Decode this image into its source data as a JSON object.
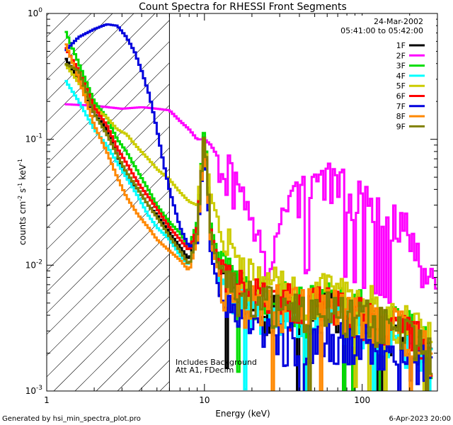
{
  "chart_data": {
    "type": "line",
    "title": "Count Spectra for RHESSI Front Segments",
    "xlabel": "Energy (keV)",
    "ylabel": "counts cm",
    "ylabel_exp1": "-2",
    "ylabel_mid": " s",
    "ylabel_exp2": "-1",
    "ylabel_tail": " keV",
    "ylabel_exp3": "-1",
    "x_scale": "log",
    "y_scale": "log",
    "xlim": [
      1,
      300
    ],
    "ylim": [
      0.001,
      1
    ],
    "x_ticks": [
      {
        "value": 1,
        "label": "1"
      },
      {
        "value": 10,
        "label": "10"
      },
      {
        "value": 100,
        "label": "100"
      }
    ],
    "y_ticks": [
      {
        "value": 1,
        "mant": "10",
        "exp": "0"
      },
      {
        "value": 0.1,
        "mant": "10",
        "exp": "-1"
      },
      {
        "value": 0.01,
        "mant": "10",
        "exp": "-2"
      },
      {
        "value": 0.001,
        "mant": "10",
        "exp": "-3"
      }
    ],
    "date_label": "24-Mar-2002",
    "time_label": "05:41:00 to 05:42:00",
    "threshold_energy": 6,
    "notes": [
      "Includes Background",
      "Att A1, FDecim"
    ],
    "series": [
      {
        "name": "1F",
        "color": "#000000",
        "points": [
          [
            1.3,
            0.45
          ],
          [
            1.6,
            0.3
          ],
          [
            2.0,
            0.16
          ],
          [
            2.4,
            0.12
          ],
          [
            2.8,
            0.075
          ],
          [
            3.2,
            0.05
          ],
          [
            3.8,
            0.04
          ],
          [
            4.4,
            0.03
          ],
          [
            5.0,
            0.025
          ],
          [
            6.0,
            0.018
          ],
          [
            7.0,
            0.014
          ],
          [
            8.0,
            0.011
          ],
          [
            9.0,
            0.02
          ],
          [
            10.0,
            0.12
          ],
          [
            11.0,
            0.018
          ],
          [
            13,
            0.008
          ],
          [
            16,
            0.006
          ],
          [
            20,
            0.005
          ],
          [
            25,
            0.0045
          ],
          [
            30,
            0.0045
          ],
          [
            40,
            0.004
          ],
          [
            50,
            0.0045
          ],
          [
            60,
            0.0045
          ],
          [
            80,
            0.004
          ],
          [
            100,
            0.004
          ],
          [
            130,
            0.0035
          ],
          [
            160,
            0.003
          ],
          [
            200,
            0.0025
          ],
          [
            250,
            0.0022
          ],
          [
            280,
            0.0018
          ]
        ]
      },
      {
        "name": "2F",
        "color": "#ff00ff",
        "points": [
          [
            1.3,
            0.19
          ],
          [
            2.0,
            0.185
          ],
          [
            3.0,
            0.175
          ],
          [
            4.0,
            0.18
          ],
          [
            5.0,
            0.175
          ],
          [
            6.0,
            0.17
          ],
          [
            7.0,
            0.14
          ],
          [
            8.0,
            0.12
          ],
          [
            9.0,
            0.1
          ],
          [
            10.0,
            0.1
          ],
          [
            11.0,
            0.09
          ],
          [
            12.0,
            0.075
          ],
          [
            14.0,
            0.055
          ],
          [
            16.0,
            0.04
          ],
          [
            18.0,
            0.028
          ],
          [
            20.0,
            0.02
          ],
          [
            22.0,
            0.014
          ],
          [
            24.0,
            0.011
          ],
          [
            27.0,
            0.013
          ],
          [
            30.0,
            0.02
          ],
          [
            35.0,
            0.032
          ],
          [
            40.0,
            0.04
          ],
          [
            50.0,
            0.047
          ],
          [
            60.0,
            0.045
          ],
          [
            70.0,
            0.042
          ],
          [
            80.0,
            0.039
          ],
          [
            100.0,
            0.033
          ],
          [
            120.0,
            0.03
          ],
          [
            140.0,
            0.027
          ],
          [
            160.0,
            0.022
          ],
          [
            190.0,
            0.018
          ],
          [
            220.0,
            0.013
          ],
          [
            250.0,
            0.01
          ],
          [
            280.0,
            0.009
          ],
          [
            300.0,
            0.0085
          ]
        ]
      },
      {
        "name": "3F",
        "color": "#00dd00",
        "points": [
          [
            1.3,
            0.75
          ],
          [
            1.6,
            0.4
          ],
          [
            2.0,
            0.2
          ],
          [
            2.4,
            0.15
          ],
          [
            2.8,
            0.1
          ],
          [
            3.2,
            0.08
          ],
          [
            3.8,
            0.055
          ],
          [
            4.4,
            0.04
          ],
          [
            5.0,
            0.03
          ],
          [
            6.0,
            0.022
          ],
          [
            7.0,
            0.018
          ],
          [
            8.0,
            0.014
          ],
          [
            9.0,
            0.022
          ],
          [
            10.0,
            0.13
          ],
          [
            11.0,
            0.02
          ],
          [
            13,
            0.009
          ],
          [
            16,
            0.007
          ],
          [
            20,
            0.006
          ],
          [
            25,
            0.0055
          ],
          [
            30,
            0.0055
          ],
          [
            40,
            0.005
          ],
          [
            50,
            0.005
          ],
          [
            60,
            0.005
          ],
          [
            80,
            0.0045
          ],
          [
            100,
            0.0045
          ],
          [
            130,
            0.004
          ],
          [
            160,
            0.0035
          ],
          [
            200,
            0.003
          ],
          [
            250,
            0.0025
          ],
          [
            280,
            0.002
          ]
        ]
      },
      {
        "name": "4F",
        "color": "#00ffff",
        "points": [
          [
            1.3,
            0.3
          ],
          [
            1.6,
            0.2
          ],
          [
            2.0,
            0.12
          ],
          [
            2.4,
            0.09
          ],
          [
            2.8,
            0.065
          ],
          [
            3.2,
            0.05
          ],
          [
            3.8,
            0.035
          ],
          [
            4.4,
            0.025
          ],
          [
            5.0,
            0.02
          ],
          [
            6.0,
            0.016
          ],
          [
            7.0,
            0.012
          ],
          [
            8.0,
            0.01
          ],
          [
            9.0,
            0.018
          ],
          [
            10.0,
            0.09
          ],
          [
            11.0,
            0.016
          ],
          [
            13,
            0.007
          ],
          [
            16,
            0.0055
          ],
          [
            20,
            0.0048
          ],
          [
            25,
            0.0045
          ],
          [
            30,
            0.0045
          ],
          [
            40,
            0.004
          ],
          [
            50,
            0.004
          ],
          [
            60,
            0.004
          ],
          [
            80,
            0.0038
          ],
          [
            100,
            0.0036
          ],
          [
            130,
            0.0032
          ],
          [
            160,
            0.0028
          ],
          [
            200,
            0.0024
          ],
          [
            250,
            0.002
          ],
          [
            280,
            0.0017
          ]
        ]
      },
      {
        "name": "5F",
        "color": "#cccc00",
        "points": [
          [
            1.3,
            0.4
          ],
          [
            1.6,
            0.28
          ],
          [
            2.0,
            0.18
          ],
          [
            2.4,
            0.15
          ],
          [
            2.8,
            0.12
          ],
          [
            3.2,
            0.11
          ],
          [
            3.8,
            0.085
          ],
          [
            4.4,
            0.07
          ],
          [
            5.0,
            0.058
          ],
          [
            6.0,
            0.048
          ],
          [
            7.0,
            0.038
          ],
          [
            8.0,
            0.032
          ],
          [
            9.0,
            0.03
          ],
          [
            10.0,
            0.1
          ],
          [
            11.0,
            0.035
          ],
          [
            12.0,
            0.025
          ],
          [
            13,
            0.02
          ],
          [
            14,
            0.015
          ],
          [
            16,
            0.01
          ],
          [
            20,
            0.008
          ],
          [
            25,
            0.007
          ],
          [
            30,
            0.0065
          ],
          [
            40,
            0.006
          ],
          [
            50,
            0.006
          ],
          [
            60,
            0.0058
          ],
          [
            80,
            0.0055
          ],
          [
            100,
            0.005
          ],
          [
            130,
            0.0045
          ],
          [
            160,
            0.004
          ],
          [
            200,
            0.0035
          ],
          [
            250,
            0.003
          ],
          [
            280,
            0.0025
          ]
        ]
      },
      {
        "name": "6F",
        "color": "#ff0000",
        "points": [
          [
            1.3,
            0.55
          ],
          [
            1.6,
            0.35
          ],
          [
            2.0,
            0.18
          ],
          [
            2.4,
            0.13
          ],
          [
            2.8,
            0.085
          ],
          [
            3.2,
            0.065
          ],
          [
            3.8,
            0.045
          ],
          [
            4.4,
            0.035
          ],
          [
            5.0,
            0.028
          ],
          [
            6.0,
            0.02
          ],
          [
            7.0,
            0.016
          ],
          [
            8.0,
            0.013
          ],
          [
            9.0,
            0.02
          ],
          [
            10.0,
            0.11
          ],
          [
            11.0,
            0.018
          ],
          [
            13,
            0.008
          ],
          [
            16,
            0.0065
          ],
          [
            20,
            0.0055
          ],
          [
            25,
            0.005
          ],
          [
            30,
            0.005
          ],
          [
            40,
            0.0048
          ],
          [
            50,
            0.0048
          ],
          [
            60,
            0.0046
          ],
          [
            80,
            0.0042
          ],
          [
            100,
            0.004
          ],
          [
            130,
            0.0036
          ],
          [
            160,
            0.0032
          ],
          [
            200,
            0.0027
          ],
          [
            250,
            0.0023
          ],
          [
            280,
            0.0019
          ]
        ]
      },
      {
        "name": "7F",
        "color": "#0000dd",
        "points": [
          [
            1.3,
            0.5
          ],
          [
            1.6,
            0.65
          ],
          [
            2.0,
            0.75
          ],
          [
            2.4,
            0.82
          ],
          [
            2.8,
            0.8
          ],
          [
            3.2,
            0.65
          ],
          [
            3.6,
            0.5
          ],
          [
            4.0,
            0.35
          ],
          [
            4.5,
            0.22
          ],
          [
            5.0,
            0.12
          ],
          [
            5.5,
            0.065
          ],
          [
            6.0,
            0.04
          ],
          [
            6.5,
            0.028
          ],
          [
            7.0,
            0.02
          ],
          [
            8.0,
            0.014
          ],
          [
            9.0,
            0.015
          ],
          [
            10.0,
            0.1
          ],
          [
            11.0,
            0.012
          ],
          [
            13,
            0.005
          ],
          [
            16,
            0.0035
          ],
          [
            20,
            0.003
          ],
          [
            25,
            0.0028
          ],
          [
            30,
            0.0025
          ],
          [
            40,
            0.0025
          ],
          [
            50,
            0.0026
          ],
          [
            60,
            0.0026
          ],
          [
            80,
            0.0025
          ],
          [
            100,
            0.0024
          ],
          [
            130,
            0.0022
          ],
          [
            160,
            0.002
          ],
          [
            200,
            0.0018
          ],
          [
            250,
            0.0016
          ],
          [
            280,
            0.0014
          ]
        ]
      },
      {
        "name": "8F",
        "color": "#ff8800",
        "points": [
          [
            1.3,
            0.6
          ],
          [
            1.6,
            0.3
          ],
          [
            2.0,
            0.13
          ],
          [
            2.4,
            0.08
          ],
          [
            2.8,
            0.05
          ],
          [
            3.2,
            0.035
          ],
          [
            3.8,
            0.025
          ],
          [
            4.4,
            0.02
          ],
          [
            5.0,
            0.016
          ],
          [
            6.0,
            0.013
          ],
          [
            7.0,
            0.011
          ],
          [
            8.0,
            0.009
          ],
          [
            9.0,
            0.016
          ],
          [
            10.0,
            0.1
          ],
          [
            11.0,
            0.015
          ],
          [
            13,
            0.007
          ],
          [
            16,
            0.0055
          ],
          [
            20,
            0.005
          ],
          [
            25,
            0.0048
          ],
          [
            30,
            0.0048
          ],
          [
            40,
            0.0046
          ],
          [
            50,
            0.0046
          ],
          [
            60,
            0.0045
          ],
          [
            80,
            0.0042
          ],
          [
            100,
            0.004
          ],
          [
            130,
            0.0036
          ],
          [
            160,
            0.0032
          ],
          [
            200,
            0.0027
          ],
          [
            250,
            0.0023
          ],
          [
            280,
            0.0019
          ]
        ]
      },
      {
        "name": "9F",
        "color": "#808000",
        "points": [
          [
            1.3,
            0.4
          ],
          [
            1.6,
            0.35
          ],
          [
            2.0,
            0.16
          ],
          [
            2.4,
            0.11
          ],
          [
            2.8,
            0.075
          ],
          [
            3.2,
            0.055
          ],
          [
            3.8,
            0.04
          ],
          [
            4.4,
            0.03
          ],
          [
            5.0,
            0.024
          ],
          [
            6.0,
            0.017
          ],
          [
            7.0,
            0.013
          ],
          [
            8.0,
            0.01
          ],
          [
            9.0,
            0.018
          ],
          [
            10.0,
            0.12
          ],
          [
            11.0,
            0.017
          ],
          [
            13,
            0.0075
          ],
          [
            16,
            0.006
          ],
          [
            20,
            0.005
          ],
          [
            25,
            0.0047
          ],
          [
            30,
            0.0047
          ],
          [
            40,
            0.0044
          ],
          [
            50,
            0.0044
          ],
          [
            60,
            0.0043
          ],
          [
            80,
            0.004
          ],
          [
            100,
            0.0038
          ],
          [
            130,
            0.0034
          ],
          [
            160,
            0.003
          ],
          [
            200,
            0.0026
          ],
          [
            250,
            0.0022
          ],
          [
            280,
            0.0018
          ]
        ]
      }
    ]
  },
  "footer": {
    "left": "Generated by hsi_min_spectra_plot.pro",
    "right": "6-Apr-2023 20:00"
  }
}
